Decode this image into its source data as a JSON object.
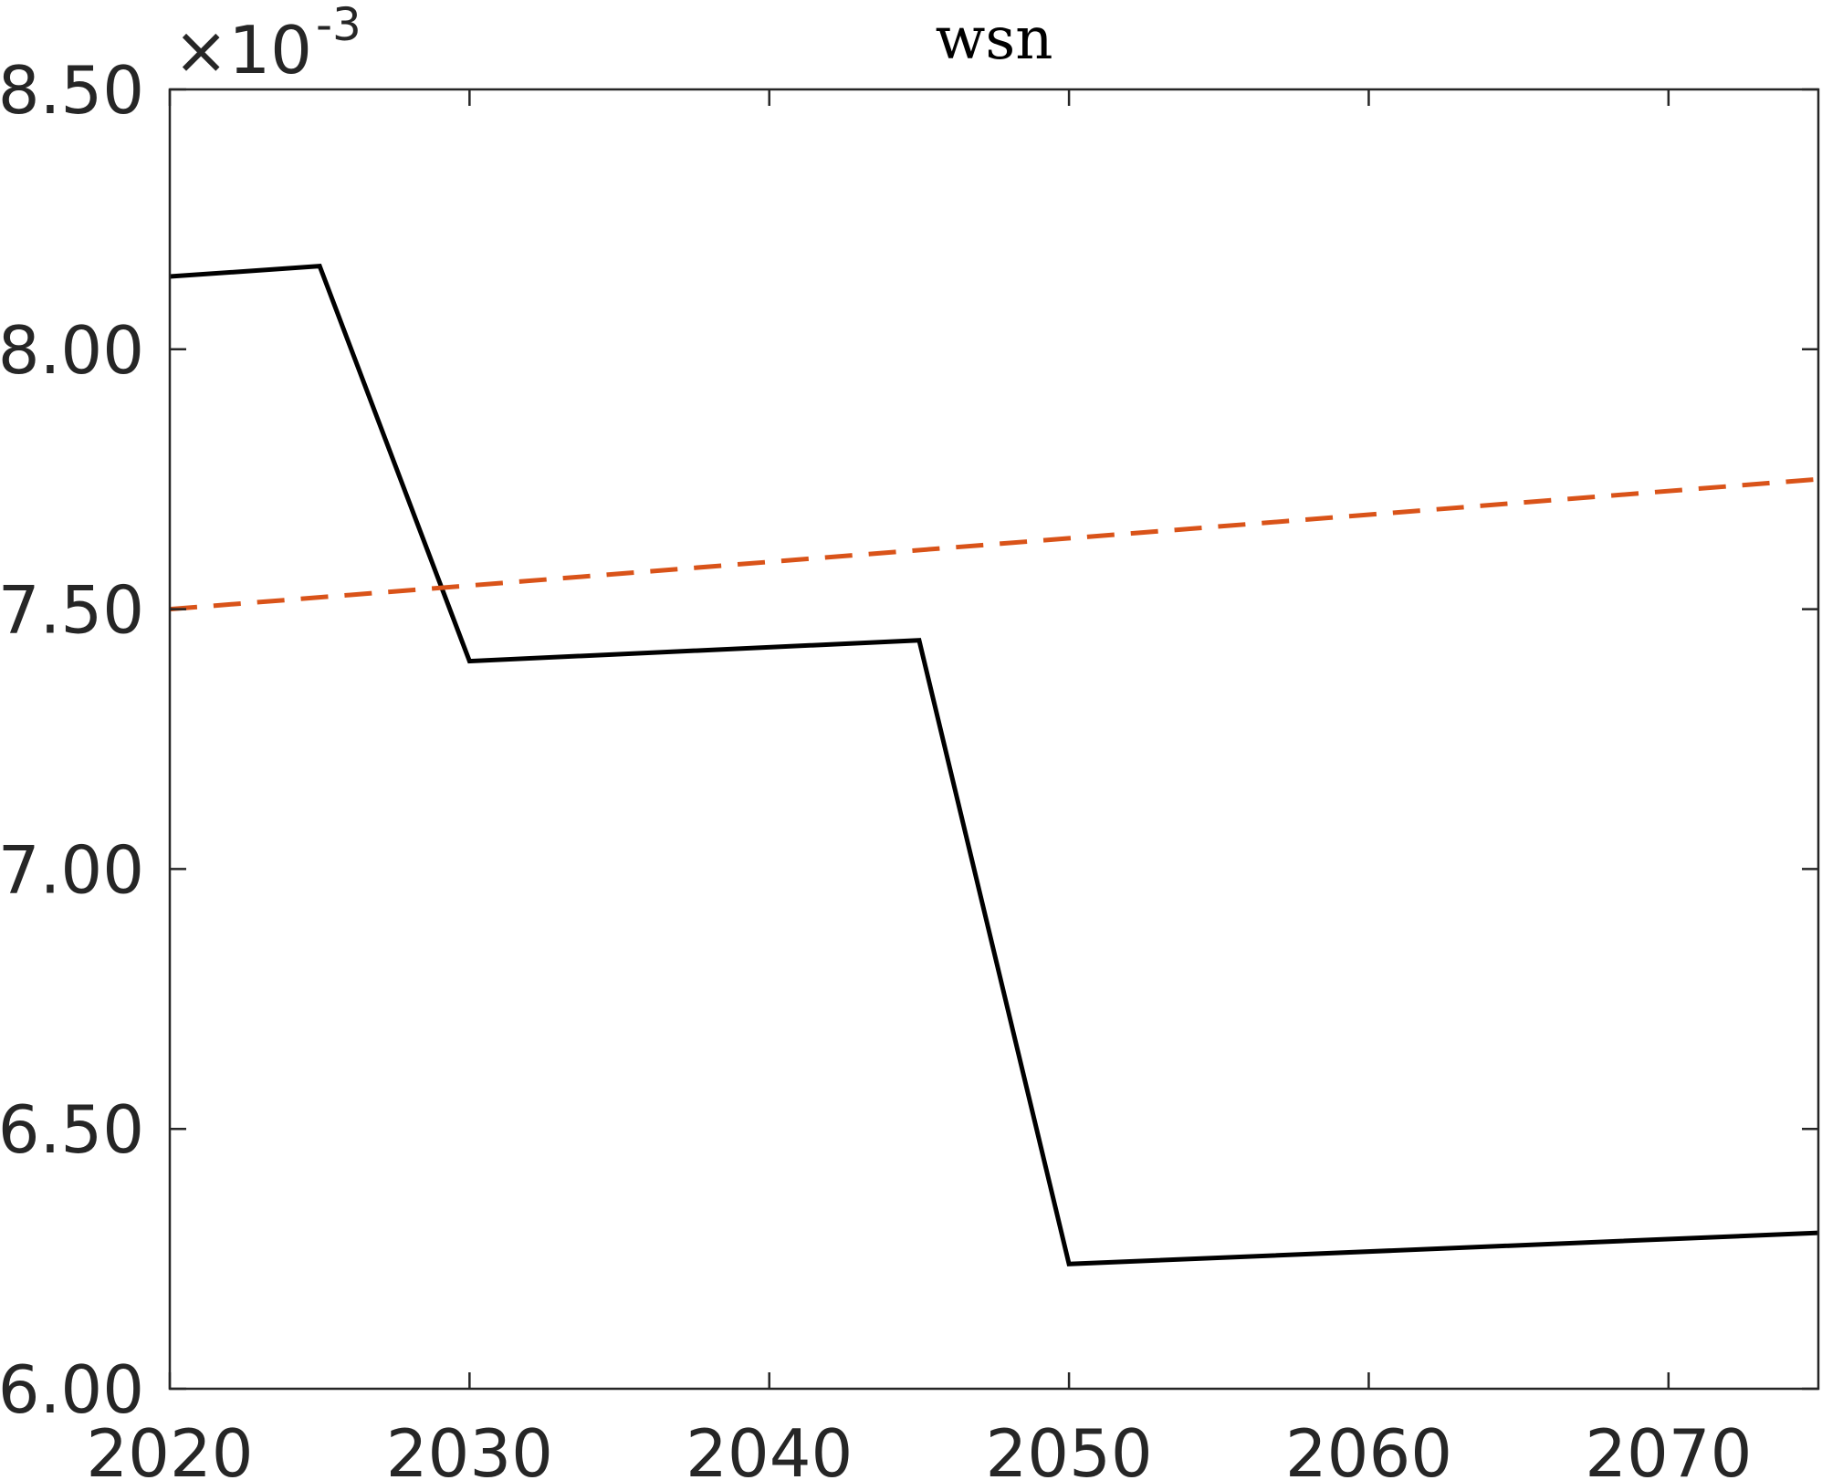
{
  "chart_data": {
    "type": "line",
    "title": "wsn",
    "xlabel": "",
    "ylabel": "",
    "xlim": [
      2020,
      2075
    ],
    "ylim": [
      6.0,
      8.5
    ],
    "y_exponent_label": {
      "base": "×10",
      "exponent": "-3"
    },
    "x_ticks": [
      2020,
      2030,
      2040,
      2050,
      2060,
      2070
    ],
    "x_tick_labels": [
      "2020",
      "2030",
      "2040",
      "2050",
      "2060",
      "2070"
    ],
    "y_ticks": [
      6.0,
      6.5,
      7.0,
      7.5,
      8.0,
      8.5
    ],
    "y_tick_labels": [
      "6.00",
      "6.50",
      "7.00",
      "7.50",
      "8.00",
      "8.50"
    ],
    "grid": false,
    "legend": "none",
    "series": [
      {
        "style": "solid",
        "color": "#000000",
        "x": [
          2020,
          2025,
          2030,
          2045,
          2050,
          2075
        ],
        "y": [
          8.14,
          8.16,
          7.4,
          7.44,
          6.24,
          6.3
        ]
      },
      {
        "style": "dashed",
        "color": "#D95319",
        "x": [
          2020,
          2075
        ],
        "y": [
          7.5,
          7.75
        ]
      }
    ]
  }
}
